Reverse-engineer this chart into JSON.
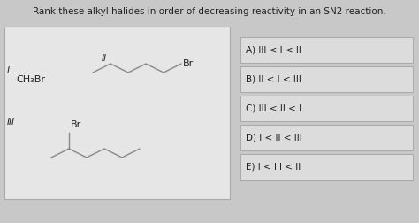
{
  "title": "Rank these alkyl halides in order of decreasing reactivity in an SN2 reaction.",
  "title_fontsize": 7.5,
  "bg_color": "#c8c8c8",
  "left_box_bg": "#e8e8e8",
  "answer_bg": "#e0e0e0",
  "answers": [
    "A) III < I < II",
    "B) II < I < III",
    "C) III < II < I",
    "D) I < II < III",
    "E) I < III < II"
  ],
  "figsize": [
    4.74,
    2.52
  ],
  "dpi": 100,
  "struct_color": "#888888",
  "text_color": "#222222"
}
